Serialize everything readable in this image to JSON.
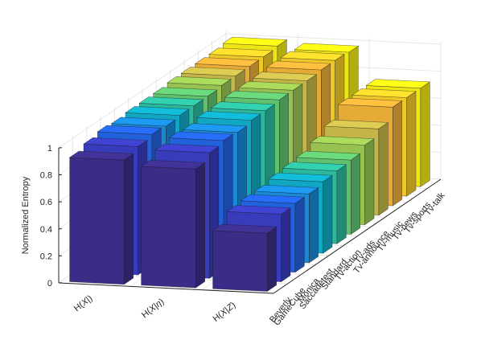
{
  "chart_data": {
    "type": "bar3d",
    "ylabel": "Normalized Entropy",
    "zlim": [
      0,
      1
    ],
    "z_ticks": [
      "0",
      "0.2",
      "0.4",
      "0.6",
      "0.8",
      "1"
    ],
    "x_categories": [
      "H(X)",
      "H(X|η)",
      "H(X|Z)"
    ],
    "x_tick_labels": [
      {
        "base": "H(",
        "var": "X",
        "sep": "|",
        "cond": "",
        "close": ")"
      },
      {
        "base": "H(",
        "var": "X",
        "sep": "|",
        "cond": "η",
        "close": ")"
      },
      {
        "base": "H(",
        "var": "X",
        "sep": "|",
        "cond": "Z",
        "close": ")"
      }
    ],
    "depth_categories": [
      "Beverly",
      "GameCube",
      "Monica",
      "Saccadetest",
      "Standard",
      "Tv-action",
      "Tv-ads",
      "Tv-announce",
      "Tv-music",
      "Tv-news",
      "Tv-sports",
      "Tv-talk"
    ],
    "grid": true,
    "colormap": [
      "#3d2f8e",
      "#3b3fc4",
      "#2466e8",
      "#1b8fe0",
      "#12b0cc",
      "#2ec2a4",
      "#64cb74",
      "#9fcc55",
      "#cdbe4c",
      "#f2b33a",
      "#fbd22a",
      "#f9f116"
    ],
    "series": [
      {
        "name": "Beverly",
        "values": [
          0.92,
          0.88,
          0.43
        ]
      },
      {
        "name": "GameCube",
        "values": [
          0.95,
          0.93,
          0.5
        ]
      },
      {
        "name": "Monica",
        "values": [
          0.97,
          0.95,
          0.51
        ]
      },
      {
        "name": "Saccadetest",
        "values": [
          0.96,
          0.94,
          0.51
        ]
      },
      {
        "name": "Standard",
        "values": [
          0.97,
          0.96,
          0.53
        ]
      },
      {
        "name": "Tv-action",
        "values": [
          0.97,
          0.96,
          0.54
        ]
      },
      {
        "name": "Tv-ads",
        "values": [
          0.97,
          0.97,
          0.55
        ]
      },
      {
        "name": "Tv-announce",
        "values": [
          0.98,
          0.97,
          0.59
        ]
      },
      {
        "name": "Tv-music",
        "values": [
          0.98,
          0.97,
          0.64
        ]
      },
      {
        "name": "Tv-news",
        "values": [
          0.98,
          0.98,
          0.73
        ]
      },
      {
        "name": "Tv-sports",
        "values": [
          0.98,
          0.98,
          0.73
        ]
      },
      {
        "name": "Tv-talk",
        "values": [
          0.99,
          0.97,
          0.73
        ]
      }
    ]
  }
}
